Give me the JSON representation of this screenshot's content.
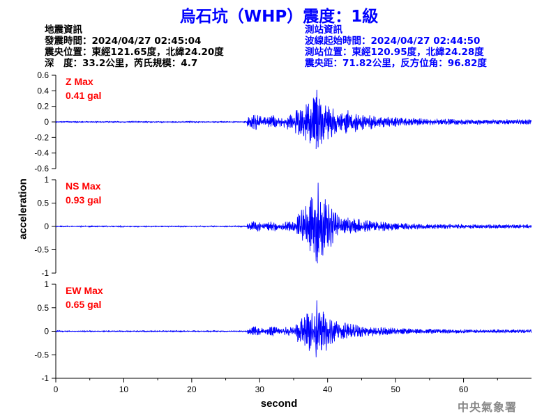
{
  "title": "烏石坑（WHP）震度：1級",
  "earthquake_info": {
    "heading": "地震資訊",
    "origin_time": "發震時間：2024/04/27 02:45:04",
    "epicenter": "震央位置：東經121.65度，北緯24.20度",
    "depth_magnitude": "深　度：33.2公里，芮氏規模：4.7"
  },
  "station_info": {
    "heading": "測站資訊",
    "wave_start": "波線起始時間：2024/04/27 02:44:50",
    "location": "測站位置：東經120.95度，北緯24.28度",
    "distance": "震央距：71.82公里，反方位角：96.82度"
  },
  "colors": {
    "title": "#0000ff",
    "trace": "#0000ff",
    "max_label": "#ff0000",
    "station_text": "#0000ff",
    "footer": "#888888"
  },
  "footer": "中央氣象署",
  "chart_data": [
    {
      "type": "line",
      "component": "Z",
      "max_title": "Z Max",
      "max_value": "0.41 gal",
      "ylim": [
        -0.6,
        0.6
      ],
      "yticks": [
        -0.6,
        -0.4,
        -0.2,
        0,
        0.2,
        0.4,
        0.6
      ],
      "xlim": [
        0,
        70
      ],
      "trace": {
        "onset": 28.2,
        "peak": 38.3,
        "pre": 0.012,
        "p_amp": 0.1,
        "s_amp": 0.33,
        "tail": 0.03,
        "peak_value": 0.41,
        "seed": 7
      }
    },
    {
      "type": "line",
      "component": "NS",
      "max_title": "NS Max",
      "max_value": "0.93 gal",
      "ylim": [
        -1,
        1
      ],
      "yticks": [
        -1,
        -0.5,
        0,
        0.5,
        1
      ],
      "xlim": [
        0,
        70
      ],
      "trace": {
        "onset": 28.2,
        "peak": 38.5,
        "pre": 0.02,
        "p_amp": 0.12,
        "s_amp": 0.75,
        "tail": 0.04,
        "peak_value": 0.93,
        "seed": 19
      }
    },
    {
      "type": "line",
      "component": "EW",
      "max_title": "EW Max",
      "max_value": "0.65 gal",
      "ylim": [
        -1,
        1
      ],
      "yticks": [
        -1,
        -0.5,
        0,
        0.5,
        1
      ],
      "xlim": [
        0,
        70
      ],
      "trace": {
        "onset": 28.2,
        "peak": 38.3,
        "pre": 0.02,
        "p_amp": 0.11,
        "s_amp": 0.55,
        "tail": 0.035,
        "peak_value": 0.65,
        "seed": 31
      }
    }
  ],
  "x_axis": {
    "label": "second",
    "ticks": [
      0,
      10,
      20,
      30,
      40,
      50,
      60
    ],
    "range": [
      0,
      70
    ]
  },
  "y_axis": {
    "label": "acceleration"
  }
}
